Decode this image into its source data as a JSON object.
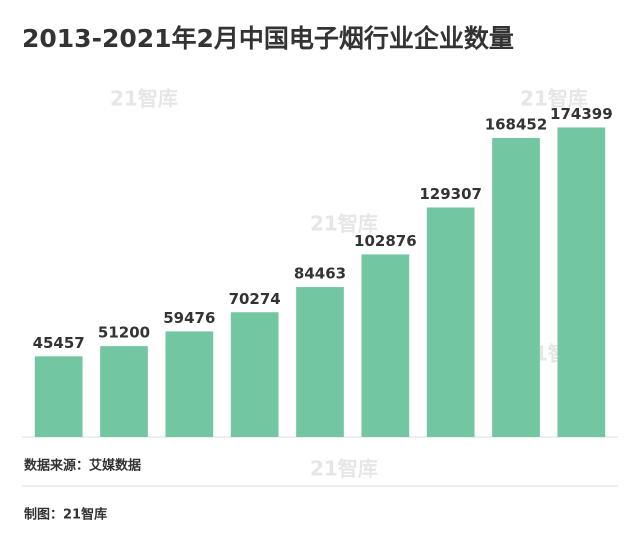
{
  "chart_data": {
    "type": "bar",
    "title": "2013-2021年2月中国电子烟行业企业数量",
    "values": [
      45457,
      51200,
      59476,
      70274,
      84463,
      102876,
      129307,
      168452,
      174399
    ],
    "color": "#72c6a2",
    "ylim": [
      0,
      200000
    ],
    "source": "数据来源：艾媒数据",
    "credit": "制图：21智库",
    "watermark": "21智库"
  }
}
